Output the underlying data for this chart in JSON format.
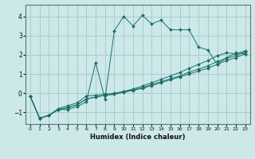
{
  "title": "",
  "xlabel": "Humidex (Indice chaleur)",
  "bg_color": "#cce8e8",
  "grid_color": "#aacccc",
  "line_color": "#1a6e6a",
  "xlim": [
    -0.5,
    23.5
  ],
  "ylim": [
    -1.6,
    4.6
  ],
  "xticks": [
    0,
    1,
    2,
    3,
    4,
    5,
    6,
    7,
    8,
    9,
    10,
    11,
    12,
    13,
    14,
    15,
    16,
    17,
    18,
    19,
    20,
    21,
    22,
    23
  ],
  "yticks": [
    -1,
    0,
    1,
    2,
    3,
    4
  ],
  "line1_x": [
    0,
    1,
    2,
    3,
    4,
    5,
    6,
    7,
    8,
    9,
    10,
    11,
    12,
    13,
    14,
    15,
    16,
    17,
    18,
    19,
    20,
    21,
    22,
    23
  ],
  "line1_y": [
    -0.15,
    -1.3,
    -1.15,
    -0.85,
    -0.85,
    -0.7,
    -0.45,
    1.6,
    -0.3,
    3.25,
    4.0,
    3.5,
    4.05,
    3.6,
    3.8,
    3.3,
    3.3,
    3.3,
    2.4,
    2.25,
    1.5,
    1.85,
    2.1,
    2.05
  ],
  "line2_x": [
    0,
    1,
    2,
    3,
    4,
    5,
    6,
    7,
    8,
    9,
    10,
    11,
    12,
    13,
    14,
    15,
    16,
    17,
    18,
    19,
    20,
    21,
    22,
    23
  ],
  "line2_y": [
    -0.15,
    -1.3,
    -1.15,
    -0.85,
    -0.75,
    -0.6,
    -0.3,
    -0.2,
    -0.1,
    -0.05,
    0.05,
    0.15,
    0.25,
    0.4,
    0.55,
    0.7,
    0.85,
    1.0,
    1.15,
    1.3,
    1.5,
    1.7,
    1.85,
    2.05
  ],
  "line3_x": [
    0,
    1,
    2,
    3,
    4,
    5,
    6,
    7,
    8,
    9,
    10,
    11,
    12,
    13,
    14,
    15,
    16,
    17,
    18,
    19,
    20,
    21,
    22,
    23
  ],
  "line3_y": [
    -0.15,
    -1.3,
    -1.15,
    -0.85,
    -0.75,
    -0.6,
    -0.3,
    -0.2,
    -0.1,
    -0.05,
    0.07,
    0.18,
    0.3,
    0.45,
    0.6,
    0.75,
    0.9,
    1.1,
    1.25,
    1.42,
    1.65,
    1.82,
    1.95,
    2.15
  ],
  "line4_x": [
    0,
    1,
    2,
    3,
    4,
    5,
    6,
    7,
    8,
    9,
    10,
    11,
    12,
    13,
    14,
    15,
    16,
    17,
    18,
    19,
    20,
    21,
    22,
    23
  ],
  "line4_y": [
    -0.15,
    -1.3,
    -1.15,
    -0.8,
    -0.65,
    -0.5,
    -0.15,
    -0.1,
    -0.05,
    0.0,
    0.1,
    0.22,
    0.38,
    0.55,
    0.72,
    0.9,
    1.08,
    1.3,
    1.5,
    1.7,
    1.95,
    2.1,
    2.05,
    2.2
  ],
  "markersize": 2.0
}
